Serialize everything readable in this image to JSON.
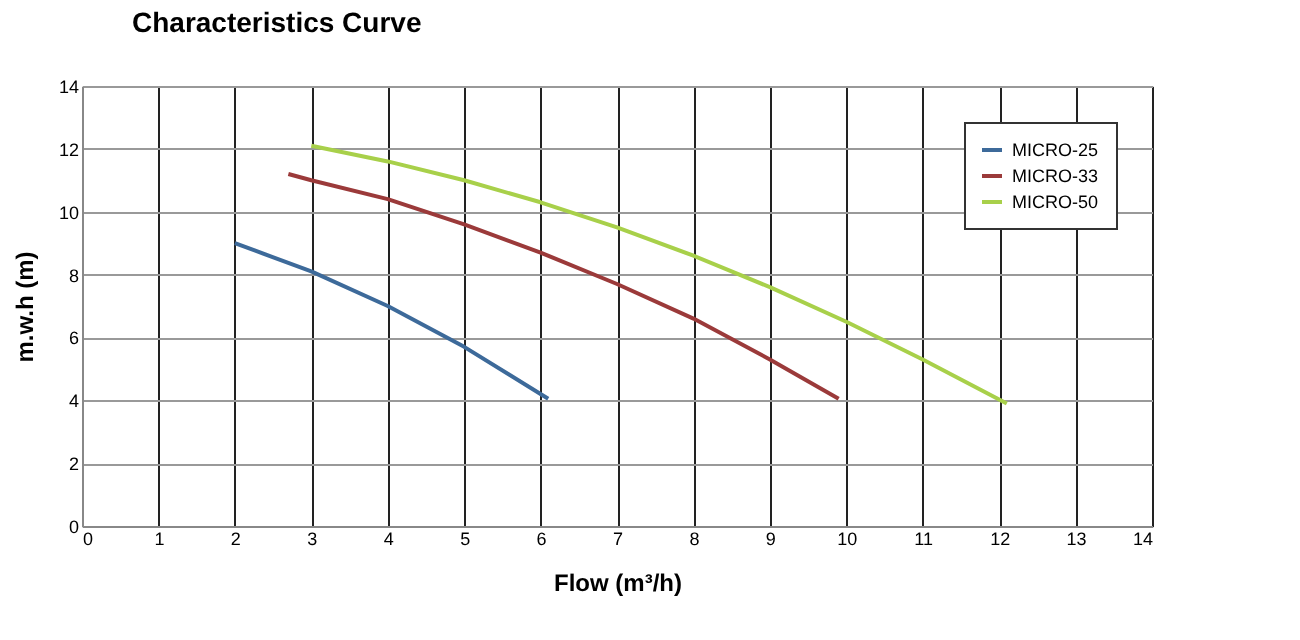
{
  "chart_data": {
    "type": "line",
    "title": "Characteristics Curve",
    "xlabel": "Flow (m³/h)",
    "ylabel": "m.w.h (m)",
    "xlim": [
      0,
      14
    ],
    "xticks": [
      0,
      1,
      2,
      3,
      4,
      5,
      6,
      7,
      8,
      9,
      10,
      11,
      12,
      13,
      14
    ],
    "ylim": [
      0,
      14
    ],
    "yticks": [
      0,
      2,
      4,
      6,
      8,
      10,
      12,
      14
    ],
    "grid": true,
    "legend": "top right",
    "marker": "none",
    "line_style": "solid",
    "series": [
      {
        "name": "MICRO-25",
        "color": "#3d6a9a",
        "x": [
          2,
          3,
          4,
          5,
          6.1
        ],
        "values": [
          9,
          8.1,
          7,
          5.7,
          4.05
        ]
      },
      {
        "name": "MICRO-33",
        "color": "#9b3a3a",
        "x": [
          2.7,
          3,
          4,
          5,
          6,
          7,
          8,
          9,
          9.9
        ],
        "values": [
          11.2,
          11,
          10.4,
          9.6,
          8.7,
          7.7,
          6.6,
          5.3,
          4.05
        ]
      },
      {
        "name": "MICRO-50",
        "color": "#a8d04a",
        "x": [
          3,
          4,
          5,
          6,
          7,
          8,
          9,
          10,
          11,
          12.1
        ],
        "values": [
          12.1,
          11.6,
          11,
          10.3,
          9.5,
          8.6,
          7.6,
          6.5,
          5.3,
          3.9
        ]
      }
    ]
  }
}
